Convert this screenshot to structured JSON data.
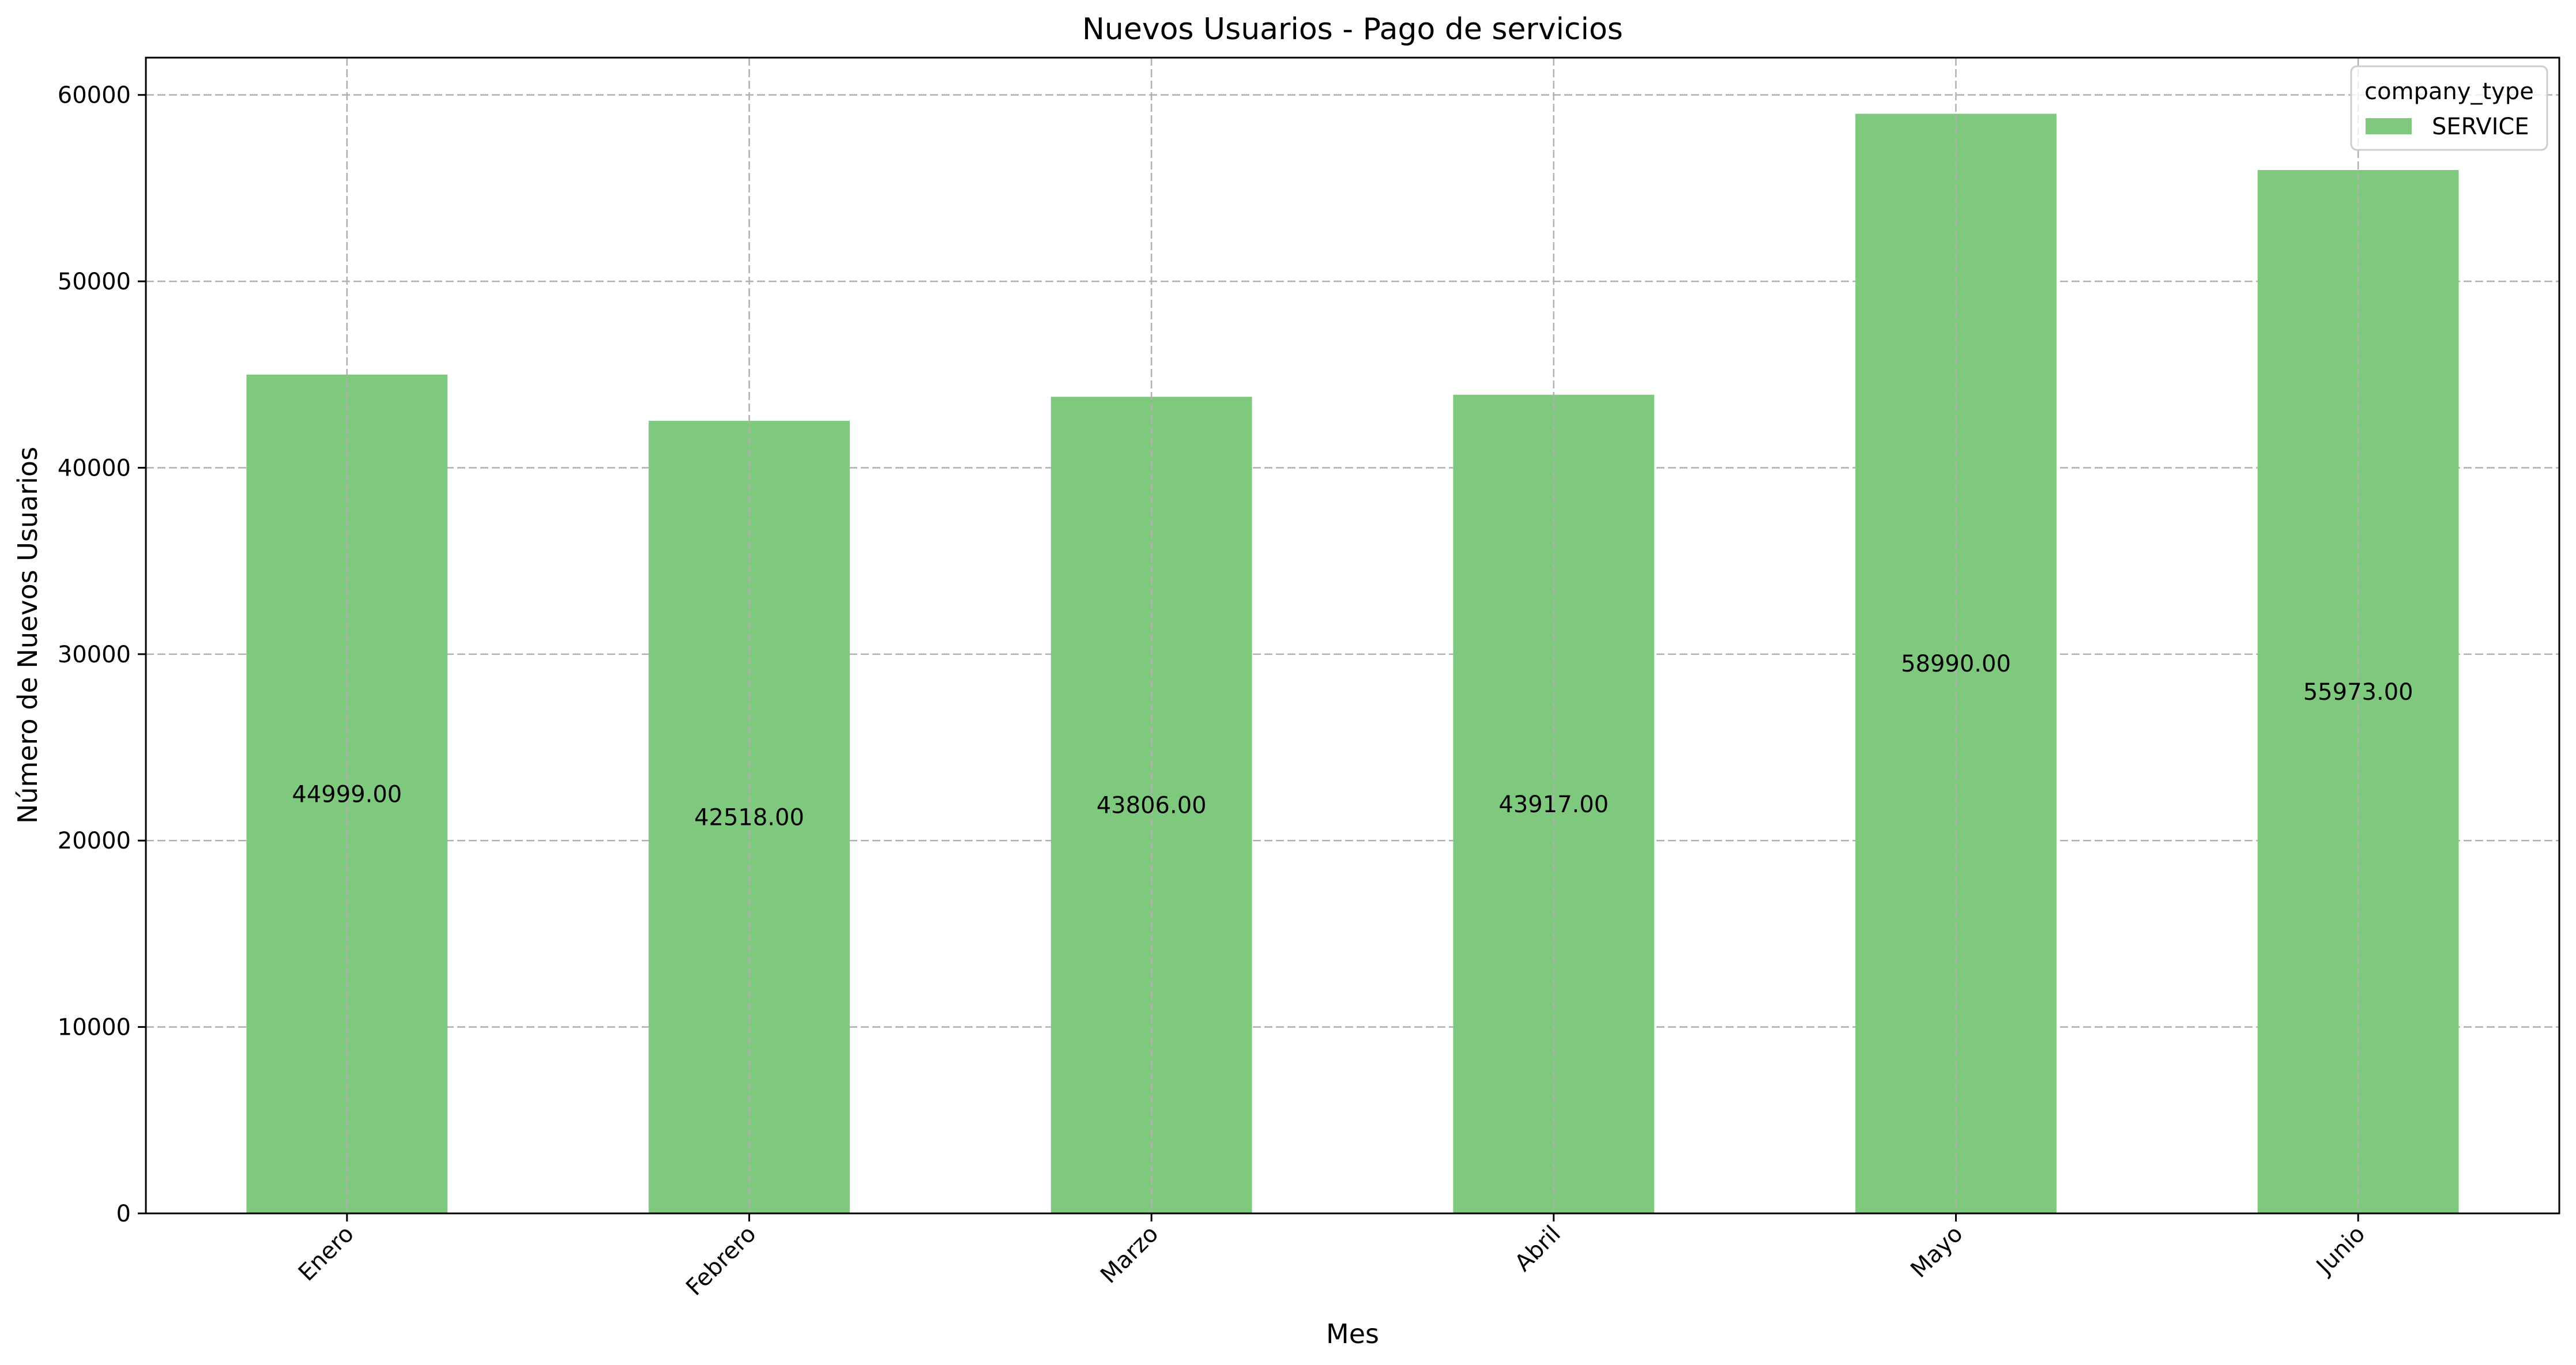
{
  "chart_data": {
    "type": "bar",
    "title": "Nuevos Usuarios - Pago de servicios",
    "xlabel": "Mes",
    "ylabel": "Número de Nuevos Usuarios",
    "categories": [
      "Enero",
      "Febrero",
      "Marzo",
      "Abril",
      "Mayo",
      "Junio"
    ],
    "series": [
      {
        "name": "SERVICE",
        "values": [
          44999,
          42518,
          43806,
          43917,
          58990,
          55973
        ],
        "labels": [
          "44999.00",
          "42518.00",
          "43806.00",
          "43917.00",
          "58990.00",
          "55973.00"
        ],
        "color": "#7fc97f"
      }
    ],
    "ylim": [
      0,
      62000
    ],
    "yticks": [
      0,
      10000,
      20000,
      30000,
      40000,
      50000,
      60000
    ],
    "grid": true,
    "legend": {
      "title": "company_type",
      "placement": "top-right"
    }
  }
}
